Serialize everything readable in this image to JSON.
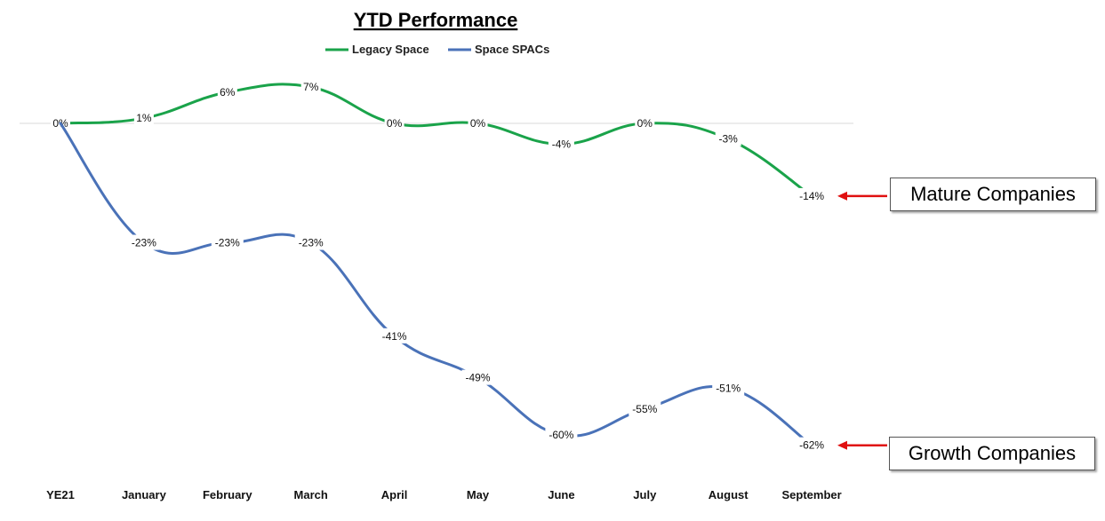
{
  "chart_data": {
    "type": "line",
    "title": "YTD Performance",
    "categories": [
      "YE21",
      "January",
      "February",
      "March",
      "April",
      "May",
      "June",
      "July",
      "August",
      "September"
    ],
    "ylim": [
      -70,
      10
    ],
    "grid": false,
    "legend_position": "top",
    "series": [
      {
        "name": "Legacy Space",
        "color": "#1aa34a",
        "values": [
          0,
          1,
          6,
          7,
          0,
          0,
          -4,
          0,
          -3,
          -14
        ],
        "labels": [
          "0%",
          "1%",
          "6%",
          "7%",
          "0%",
          "0%",
          "-4%",
          "0%",
          "-3%",
          "-14%"
        ]
      },
      {
        "name": "Space SPACs",
        "color": "#4a72b8",
        "values": [
          0,
          -23,
          -23,
          -23,
          -41,
          -49,
          -60,
          -55,
          -51,
          -62
        ],
        "labels": [
          "",
          "-23%",
          "-23%",
          "-23%",
          "-41%",
          "-49%",
          "-60%",
          "-55%",
          "-51%",
          "-62%"
        ]
      }
    ],
    "annotations": [
      {
        "text": "Mature Companies",
        "series": "Legacy Space",
        "arrow_color": "#e01010"
      },
      {
        "text": "Growth Companies",
        "series": "Space SPACs",
        "arrow_color": "#e01010"
      }
    ]
  }
}
